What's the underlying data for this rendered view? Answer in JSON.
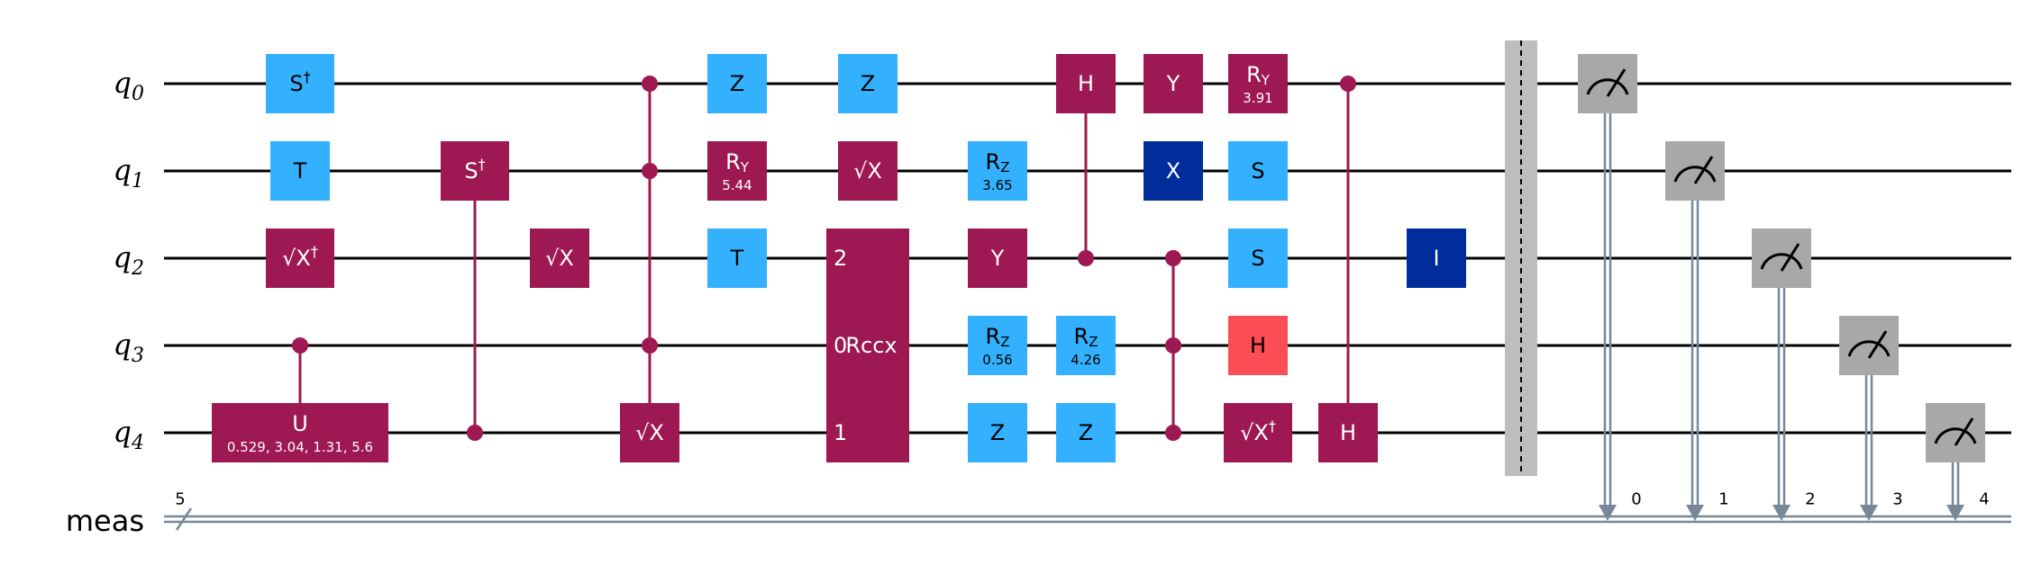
{
  "colors": {
    "magenta": "#9e1853",
    "lightblue": "#33b1ff",
    "darkblue": "#002d9c",
    "red": "#fa4d56",
    "gray": "#a8a8a8",
    "classical": "#778899"
  },
  "qubits": [
    {
      "base": "q",
      "index": "0"
    },
    {
      "base": "q",
      "index": "1"
    },
    {
      "base": "q",
      "index": "2"
    },
    {
      "base": "q",
      "index": "3"
    },
    {
      "base": "q",
      "index": "4"
    }
  ],
  "classical_register": {
    "label": "meas",
    "size": "5",
    "bits": [
      "0",
      "1",
      "2",
      "3",
      "4"
    ]
  },
  "gates": [
    {
      "id": "sdg-q0",
      "label": "S",
      "sup": "†",
      "qubit": 0,
      "col": 1,
      "color": "lightblue"
    },
    {
      "id": "t-q1",
      "label": "T",
      "qubit": 1,
      "col": 1,
      "color": "lightblue"
    },
    {
      "id": "sxdg-q2",
      "label": "√X",
      "sup": "†",
      "qubit": 2,
      "col": 1,
      "color": "magenta"
    },
    {
      "id": "cu-q4",
      "label": "U",
      "param": "0.529, 3.04, 1.31, 5.6",
      "qubit": 4,
      "col": 1,
      "color": "magenta",
      "wide": true
    },
    {
      "id": "csdg-q1",
      "label": "S",
      "sup": "†",
      "qubit": 1,
      "col": 2,
      "color": "magenta"
    },
    {
      "id": "sx-q2",
      "label": "√X",
      "qubit": 2,
      "col": 3,
      "color": "magenta"
    },
    {
      "id": "mcsx-q4",
      "label": "√X",
      "qubit": 4,
      "col": 4,
      "color": "magenta"
    },
    {
      "id": "z-q0-a",
      "label": "Z",
      "qubit": 0,
      "col": 5,
      "color": "lightblue"
    },
    {
      "id": "ry-q1-a",
      "label": "R",
      "sub": "Y",
      "param": "5.44",
      "qubit": 1,
      "col": 5,
      "color": "magenta"
    },
    {
      "id": "t-q2",
      "label": "T",
      "qubit": 2,
      "col": 5,
      "color": "lightblue"
    },
    {
      "id": "z-q0-b",
      "label": "Z",
      "qubit": 0,
      "col": 6,
      "color": "lightblue"
    },
    {
      "id": "sx-q1",
      "label": "√X",
      "qubit": 1,
      "col": 6,
      "color": "magenta"
    },
    {
      "id": "rz-q1",
      "label": "R",
      "sub": "Z",
      "param": "3.65",
      "qubit": 1,
      "col": 7,
      "color": "lightblue"
    },
    {
      "id": "y-q2",
      "label": "Y",
      "qubit": 2,
      "col": 7,
      "color": "magenta"
    },
    {
      "id": "rz-q3-a",
      "label": "R",
      "sub": "Z",
      "param": "0.56",
      "qubit": 3,
      "col": 7,
      "color": "lightblue"
    },
    {
      "id": "z-q4-a",
      "label": "Z",
      "qubit": 4,
      "col": 7,
      "color": "lightblue"
    },
    {
      "id": "ch-q0",
      "label": "H",
      "qubit": 0,
      "col": 8,
      "color": "magenta"
    },
    {
      "id": "rz-q3-b",
      "label": "R",
      "sub": "Z",
      "param": "4.26",
      "qubit": 3,
      "col": 8,
      "color": "lightblue"
    },
    {
      "id": "z-q4-b",
      "label": "Z",
      "qubit": 4,
      "col": 8,
      "color": "lightblue"
    },
    {
      "id": "y-q0",
      "label": "Y",
      "qubit": 0,
      "col": 9,
      "color": "magenta"
    },
    {
      "id": "x-q1",
      "label": "X",
      "qubit": 1,
      "col": 9,
      "color": "darkblue"
    },
    {
      "id": "ry-q0-b",
      "label": "R",
      "sub": "Y",
      "param": "3.91",
      "qubit": 0,
      "col": 10,
      "color": "magenta"
    },
    {
      "id": "s-q1",
      "label": "S",
      "qubit": 1,
      "col": 10,
      "color": "lightblue"
    },
    {
      "id": "s-q2",
      "label": "S",
      "qubit": 2,
      "col": 10,
      "color": "lightblue"
    },
    {
      "id": "h-q3",
      "label": "H",
      "qubit": 3,
      "col": 10,
      "color": "red"
    },
    {
      "id": "sxdg-q4",
      "label": "√X",
      "sup": "†",
      "qubit": 4,
      "col": 10,
      "color": "magenta"
    },
    {
      "id": "ch-q4",
      "label": "H",
      "qubit": 4,
      "col": 11,
      "color": "magenta"
    },
    {
      "id": "id-q2",
      "label": "I",
      "qubit": 2,
      "col": 12,
      "color": "darkblue"
    }
  ],
  "multi_gates": [
    {
      "id": "rccx",
      "qubits": [
        2,
        3,
        4
      ],
      "col": 6.5,
      "label": "Rccx",
      "pins": [
        {
          "qubit": 2,
          "text": "2"
        },
        {
          "qubit": 3,
          "text": "0"
        },
        {
          "qubit": 4,
          "text": "1"
        }
      ],
      "color": "magenta"
    }
  ],
  "controls": [
    {
      "id": "ctrl-cu",
      "qubit": 3,
      "target": 4,
      "col": 1
    },
    {
      "id": "ctrl-csdg",
      "qubit": 4,
      "target": 1,
      "col": 2
    },
    {
      "id": "ctrl-mcsx-0",
      "qubit": 0,
      "target": 4,
      "col": 4
    },
    {
      "id": "ctrl-mcsx-1",
      "qubit": 1,
      "target": 4,
      "col": 4
    },
    {
      "id": "ctrl-mcsx-3",
      "qubit": 3,
      "target": 4,
      "col": 4
    },
    {
      "id": "ctrl-ch-q0",
      "qubit": 2,
      "target": 0,
      "col": 8
    },
    {
      "id": "ctrl-ch-q4",
      "qubit": 0,
      "target": 4,
      "col": 11
    }
  ],
  "cz_groups": [
    {
      "id": "ccz",
      "qubits": [
        2,
        3,
        4
      ],
      "col": 9
    }
  ],
  "barrier": {
    "col": 13
  },
  "measurements": [
    {
      "qubit": 0,
      "bit": "0",
      "col": 14
    },
    {
      "qubit": 1,
      "bit": "1",
      "col": 15
    },
    {
      "qubit": 2,
      "bit": "2",
      "col": 16
    },
    {
      "qubit": 3,
      "bit": "3",
      "col": 17
    },
    {
      "qubit": 4,
      "bit": "4",
      "col": 18
    }
  ]
}
